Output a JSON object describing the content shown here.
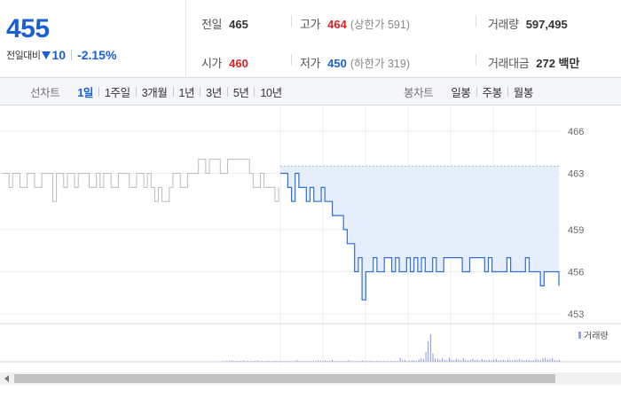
{
  "summary": {
    "price": "455",
    "change_label": "전일대비",
    "change_abs": "10",
    "change_pct": "-2.15%",
    "prev_close_label": "전일",
    "prev_close": "465",
    "high_label": "고가",
    "high": "464",
    "upper_limit": "(상한가 591)",
    "volume_label": "거래량",
    "volume": "597,495",
    "open_label": "시가",
    "open": "460",
    "low_label": "저가",
    "low": "450",
    "lower_limit": "(하한가 319)",
    "amount_label": "거래대금",
    "amount": "272 백만"
  },
  "period_bar": {
    "line_title": "선차트",
    "line_items": [
      "1일",
      "1주일",
      "3개월",
      "1년",
      "3년",
      "5년",
      "10년"
    ],
    "line_active": 0,
    "candle_title": "봉차트",
    "candle_items": [
      "일봉",
      "주봉",
      "월봉"
    ]
  },
  "colors": {
    "up": "#e02020",
    "down": "#1a5fd6",
    "today_line": "#2f6fd8",
    "prev_line": "#b9bcc2",
    "today_fill": "#e6eefb"
  },
  "chart_data": {
    "type": "line",
    "y_ticks": [
      466,
      463,
      459,
      456,
      453
    ],
    "ylim": [
      452.5,
      466.5
    ],
    "y_axis_position": "right",
    "legend": "거래량",
    "series": [
      {
        "values": [
          463,
          463,
          462,
          463,
          463,
          462,
          462,
          463,
          463,
          462,
          462,
          463,
          463,
          463,
          461,
          463,
          463,
          462,
          463,
          463,
          462,
          463,
          463,
          463,
          462,
          462,
          463,
          462,
          463,
          463,
          462,
          462,
          463,
          463,
          463,
          462,
          462,
          463,
          463,
          462,
          463,
          462,
          461,
          462,
          461,
          461,
          462,
          463,
          463,
          462,
          462,
          463,
          463,
          463,
          464,
          464,
          463,
          464,
          464,
          464,
          463,
          463,
          464,
          464,
          464,
          464,
          464,
          464,
          463,
          462,
          462,
          463,
          462,
          462,
          462,
          461,
          462
        ]
      },
      {
        "values": [
          463,
          463,
          462,
          461,
          463,
          462,
          462,
          461,
          462,
          461,
          461,
          462,
          461,
          461,
          460,
          460,
          460,
          459,
          458,
          458,
          456,
          457,
          454,
          456,
          456,
          457,
          456,
          456,
          457,
          457,
          456,
          457,
          456,
          456,
          457,
          456,
          457,
          456,
          457,
          456,
          456,
          457,
          456,
          456,
          457,
          457,
          457,
          457,
          457,
          456,
          456,
          457,
          457,
          457,
          457,
          456,
          457,
          456,
          456,
          456,
          456,
          457,
          456,
          456,
          456,
          456,
          457,
          456,
          456,
          456,
          455,
          456,
          456,
          456,
          456,
          455
        ]
      }
    ],
    "volume": [
      1,
      1,
      1,
      1,
      2,
      1,
      1,
      1,
      1,
      2,
      1,
      1,
      1,
      1,
      1,
      2,
      1,
      1,
      1,
      1,
      1,
      1,
      1,
      1,
      1,
      1,
      1,
      1,
      1,
      1,
      1,
      1,
      2,
      1,
      1,
      1,
      1,
      1,
      1,
      1,
      1,
      2,
      1,
      1,
      2,
      1,
      1,
      3,
      1,
      1,
      1,
      1,
      1,
      1,
      2,
      1,
      1,
      1,
      1,
      1,
      2,
      1,
      1,
      1,
      1,
      1,
      1,
      1,
      1,
      1,
      1,
      1,
      1,
      1,
      1,
      1,
      6,
      2,
      3,
      1,
      1,
      2,
      2,
      1,
      3,
      5,
      4,
      14,
      30,
      40,
      12,
      5,
      4,
      3,
      5,
      3,
      2,
      6,
      3,
      2,
      4,
      3,
      2,
      5,
      3,
      2,
      3,
      4,
      2,
      3,
      2,
      4,
      3,
      2,
      3,
      2,
      3,
      4,
      2,
      2,
      3,
      2,
      3,
      2,
      2,
      3,
      2,
      4,
      3,
      2,
      3,
      3,
      2,
      2,
      4,
      3,
      2,
      5,
      6,
      3,
      4,
      5,
      3,
      2,
      3
    ]
  }
}
